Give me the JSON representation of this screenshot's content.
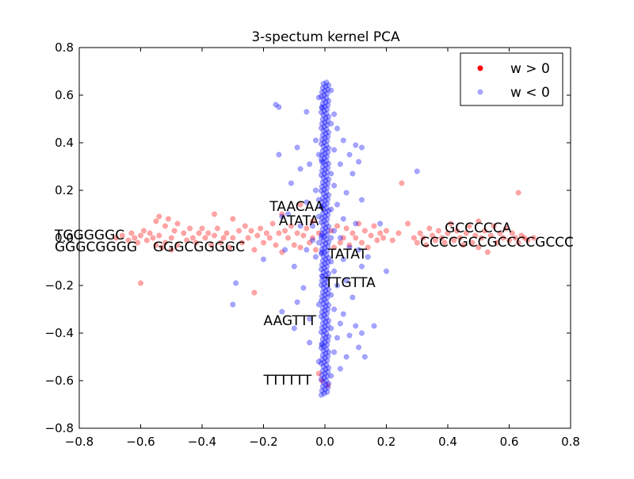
{
  "chart_data": {
    "type": "scatter",
    "title": "3-spectum kernel PCA",
    "xlabel": "",
    "ylabel": "",
    "xlim": [
      -0.8,
      0.8
    ],
    "ylim": [
      -0.8,
      0.8
    ],
    "x_ticks": [
      -0.8,
      -0.6,
      -0.4,
      -0.2,
      0.0,
      0.2,
      0.4,
      0.6,
      0.8
    ],
    "y_ticks": [
      -0.8,
      -0.6,
      -0.4,
      -0.2,
      0.0,
      0.2,
      0.4,
      0.6,
      0.8
    ],
    "x_tick_labels": [
      "−0.8",
      "−0.6",
      "−0.4",
      "−0.2",
      "0.0",
      "0.2",
      "0.4",
      "0.6",
      "0.8"
    ],
    "y_tick_labels": [
      "−0.8",
      "−0.6",
      "−0.4",
      "−0.2",
      "0.0",
      "0.2",
      "0.4",
      "0.6",
      "0.8"
    ],
    "grid": false,
    "legend": {
      "placement": "top-right"
    },
    "series": [
      {
        "name": "w > 0",
        "color": "#ff0000",
        "alpha": 0.35,
        "points": [
          [
            -0.68,
            0.0
          ],
          [
            -0.66,
            0.01
          ],
          [
            -0.64,
            -0.01
          ],
          [
            -0.63,
            0.02
          ],
          [
            -0.62,
            0.0
          ],
          [
            -0.61,
            -0.02
          ],
          [
            -0.6,
            0.01
          ],
          [
            -0.6,
            -0.19
          ],
          [
            -0.59,
            0.03
          ],
          [
            -0.58,
            -0.01
          ],
          [
            -0.57,
            0.02
          ],
          [
            -0.56,
            0.0
          ],
          [
            -0.55,
            0.07
          ],
          [
            -0.55,
            -0.03
          ],
          [
            -0.54,
            0.09
          ],
          [
            -0.54,
            0.01
          ],
          [
            -0.53,
            -0.04
          ],
          [
            -0.52,
            0.05
          ],
          [
            -0.52,
            -0.02
          ],
          [
            -0.51,
            0.08
          ],
          [
            -0.5,
            0.0
          ],
          [
            -0.5,
            -0.05
          ],
          [
            -0.49,
            0.03
          ],
          [
            -0.48,
            0.06
          ],
          [
            -0.48,
            -0.03
          ],
          [
            -0.46,
            0.02
          ],
          [
            -0.45,
            -0.01
          ],
          [
            -0.44,
            0.04
          ],
          [
            -0.43,
            0.0
          ],
          [
            -0.42,
            -0.02
          ],
          [
            -0.41,
            0.02
          ],
          [
            -0.4,
            0.04
          ],
          [
            -0.39,
            0.0
          ],
          [
            -0.38,
            0.02
          ],
          [
            -0.37,
            -0.03
          ],
          [
            -0.36,
            0.1
          ],
          [
            -0.36,
            0.01
          ],
          [
            -0.35,
            0.04
          ],
          [
            -0.34,
            -0.02
          ],
          [
            -0.33,
            0.0
          ],
          [
            -0.32,
            0.02
          ],
          [
            -0.31,
            -0.04
          ],
          [
            -0.3,
            0.08
          ],
          [
            -0.3,
            0.0
          ],
          [
            -0.28,
            0.03
          ],
          [
            -0.27,
            -0.02
          ],
          [
            -0.26,
            0.05
          ],
          [
            -0.25,
            0.0
          ],
          [
            -0.24,
            0.03
          ],
          [
            -0.23,
            -0.05
          ],
          [
            -0.23,
            -0.23
          ],
          [
            -0.22,
            0.01
          ],
          [
            -0.21,
            0.04
          ],
          [
            -0.2,
            -0.02
          ],
          [
            -0.19,
            0.02
          ],
          [
            -0.18,
            0.0
          ],
          [
            -0.17,
            0.06
          ],
          [
            -0.16,
            -0.03
          ],
          [
            -0.15,
            0.02
          ],
          [
            -0.14,
            0.1
          ],
          [
            -0.14,
            -0.06
          ],
          [
            -0.13,
            0.03
          ],
          [
            -0.12,
            0.0
          ],
          [
            -0.11,
            0.05
          ],
          [
            -0.1,
            -0.03
          ],
          [
            -0.09,
            0.02
          ],
          [
            -0.08,
            0.14
          ],
          [
            -0.08,
            -0.04
          ],
          [
            -0.07,
            0.01
          ],
          [
            -0.06,
            0.04
          ],
          [
            -0.05,
            -0.02
          ],
          [
            -0.04,
            0.07
          ],
          [
            -0.04,
            0.0
          ],
          [
            -0.03,
            -0.05
          ],
          [
            -0.02,
            0.02
          ],
          [
            -0.02,
            -0.57
          ],
          [
            -0.01,
            -0.6
          ],
          [
            0.01,
            -0.62
          ],
          [
            0.02,
            0.03
          ],
          [
            0.03,
            -0.04
          ],
          [
            0.04,
            0.05
          ],
          [
            0.05,
            -0.02
          ],
          [
            0.06,
            0.0
          ],
          [
            0.07,
            0.04
          ],
          [
            0.08,
            -0.03
          ],
          [
            0.09,
            0.02
          ],
          [
            0.1,
            0.0
          ],
          [
            0.11,
            0.06
          ],
          [
            0.12,
            -0.02
          ],
          [
            0.13,
            0.03
          ],
          [
            0.14,
            -0.04
          ],
          [
            0.15,
            0.01
          ],
          [
            0.16,
            0.05
          ],
          [
            0.17,
            -0.01
          ],
          [
            0.18,
            0.02
          ],
          [
            0.19,
            0.0
          ],
          [
            0.2,
            0.03
          ],
          [
            0.22,
            -0.01
          ],
          [
            0.24,
            0.02
          ],
          [
            0.25,
            0.23
          ],
          [
            0.27,
            0.06
          ],
          [
            0.29,
            0.0
          ],
          [
            0.3,
            -0.02
          ],
          [
            0.31,
            0.02
          ],
          [
            0.32,
            0.0
          ],
          [
            0.33,
            -0.03
          ],
          [
            0.34,
            0.04
          ],
          [
            0.35,
            0.01
          ],
          [
            0.36,
            -0.01
          ],
          [
            0.37,
            0.03
          ],
          [
            0.38,
            0.0
          ],
          [
            0.39,
            -0.02
          ],
          [
            0.4,
            0.02
          ],
          [
            0.41,
            0.06
          ],
          [
            0.42,
            -0.01
          ],
          [
            0.43,
            0.03
          ],
          [
            0.44,
            0.0
          ],
          [
            0.45,
            -0.03
          ],
          [
            0.46,
            0.02
          ],
          [
            0.47,
            0.05
          ],
          [
            0.48,
            -0.02
          ],
          [
            0.49,
            0.01
          ],
          [
            0.5,
            0.07
          ],
          [
            0.5,
            -0.04
          ],
          [
            0.51,
            0.0
          ],
          [
            0.52,
            0.03
          ],
          [
            0.53,
            -0.06
          ],
          [
            0.54,
            0.01
          ],
          [
            0.55,
            0.05
          ],
          [
            0.56,
            -0.02
          ],
          [
            0.57,
            0.02
          ],
          [
            0.58,
            0.0
          ],
          [
            0.59,
            0.04
          ],
          [
            0.6,
            -0.01
          ],
          [
            0.61,
            0.02
          ],
          [
            0.62,
            0.0
          ],
          [
            0.63,
            0.19
          ],
          [
            0.63,
            -0.02
          ],
          [
            0.64,
            0.01
          ],
          [
            0.65,
            0.0
          ],
          [
            0.66,
            -0.01
          ],
          [
            0.68,
            0.0
          ]
        ]
      },
      {
        "name": "w < 0",
        "color": "#0000ff",
        "alpha": 0.35,
        "points": [
          [
            -0.3,
            -0.28
          ],
          [
            -0.29,
            -0.19
          ],
          [
            -0.2,
            -0.09
          ],
          [
            -0.16,
            0.56
          ],
          [
            -0.15,
            0.55
          ],
          [
            -0.15,
            0.35
          ],
          [
            -0.14,
            0.09
          ],
          [
            -0.14,
            -0.31
          ],
          [
            -0.13,
            -0.05
          ],
          [
            -0.12,
            0.1
          ],
          [
            -0.11,
            0.23
          ],
          [
            -0.1,
            -0.12
          ],
          [
            -0.1,
            -0.38
          ],
          [
            -0.09,
            0.38
          ],
          [
            -0.09,
            -0.27
          ],
          [
            -0.08,
            0.29
          ],
          [
            -0.08,
            0.05
          ],
          [
            -0.07,
            -0.21
          ],
          [
            -0.06,
            0.53
          ],
          [
            -0.06,
            0.15
          ],
          [
            -0.06,
            -0.05
          ],
          [
            -0.05,
            0.31
          ],
          [
            -0.05,
            -0.34
          ],
          [
            -0.05,
            -0.44
          ],
          [
            -0.04,
            0.05
          ],
          [
            -0.04,
            -0.01
          ],
          [
            -0.03,
            0.41
          ],
          [
            -0.03,
            0.2
          ],
          [
            -0.03,
            -0.08
          ],
          [
            -0.02,
            0.59
          ],
          [
            -0.02,
            0.35
          ],
          [
            -0.02,
            0.16
          ],
          [
            -0.02,
            0.09
          ],
          [
            -0.02,
            -0.02
          ],
          [
            -0.02,
            -0.28
          ],
          [
            -0.02,
            -0.52
          ],
          [
            -0.01,
            0.55
          ],
          [
            -0.01,
            0.32
          ],
          [
            -0.01,
            0.13
          ],
          [
            -0.01,
            0.01
          ],
          [
            -0.01,
            -0.06
          ],
          [
            -0.01,
            -0.16
          ],
          [
            -0.01,
            -0.45
          ],
          [
            0.02,
            0.62
          ],
          [
            0.02,
            0.48
          ],
          [
            0.02,
            0.27
          ],
          [
            0.02,
            0.12
          ],
          [
            0.02,
            0.0
          ],
          [
            0.02,
            -0.1
          ],
          [
            0.02,
            -0.24
          ],
          [
            0.02,
            -0.38
          ],
          [
            0.02,
            -0.58
          ],
          [
            0.03,
            0.52
          ],
          [
            0.03,
            0.37
          ],
          [
            0.03,
            0.22
          ],
          [
            0.03,
            0.03
          ],
          [
            0.03,
            -0.14
          ],
          [
            0.03,
            -0.3
          ],
          [
            0.03,
            -0.48
          ],
          [
            0.04,
            0.46
          ],
          [
            0.04,
            0.14
          ],
          [
            0.04,
            -0.2
          ],
          [
            0.04,
            -0.42
          ],
          [
            0.05,
            0.31
          ],
          [
            0.05,
            0.0
          ],
          [
            0.05,
            -0.55
          ],
          [
            0.05,
            -0.36
          ],
          [
            0.06,
            0.41
          ],
          [
            0.06,
            0.08
          ],
          [
            0.06,
            -0.09
          ],
          [
            0.06,
            -0.32
          ],
          [
            0.07,
            0.19
          ],
          [
            0.07,
            -0.18
          ],
          [
            0.07,
            -0.5
          ],
          [
            0.08,
            0.35
          ],
          [
            0.08,
            -0.04
          ],
          [
            0.08,
            -0.41
          ],
          [
            0.09,
            0.27
          ],
          [
            0.09,
            -0.25
          ],
          [
            0.1,
            0.39
          ],
          [
            0.1,
            0.06
          ],
          [
            0.1,
            -0.37
          ],
          [
            0.11,
            0.32
          ],
          [
            0.11,
            -0.05
          ],
          [
            0.11,
            -0.46
          ],
          [
            0.12,
            0.38
          ],
          [
            0.12,
            0.16
          ],
          [
            0.12,
            -0.12
          ],
          [
            0.12,
            -0.4
          ],
          [
            0.13,
            -0.5
          ],
          [
            0.14,
            -0.08
          ],
          [
            0.16,
            -0.37
          ],
          [
            0.18,
            0.06
          ],
          [
            0.2,
            -0.14
          ],
          [
            0.3,
            0.28
          ]
        ]
      }
    ],
    "spine": {
      "color": "#0000ff",
      "x_range": [
        -0.012,
        0.012
      ],
      "y_range": [
        -0.66,
        0.66
      ]
    },
    "annotations": [
      {
        "text": "TGGGGGC",
        "x": -0.88,
        "y": 0.01
      },
      {
        "text": "GGGCGGGG",
        "x": -0.88,
        "y": -0.04
      },
      {
        "text": "GGGCGGGGC",
        "x": -0.56,
        "y": -0.04
      },
      {
        "text": "TAACAA",
        "x": -0.18,
        "y": 0.13
      },
      {
        "text": "ATATA",
        "x": -0.15,
        "y": 0.07
      },
      {
        "text": "TATAT",
        "x": 0.01,
        "y": -0.07
      },
      {
        "text": "TTGTTA",
        "x": 0.0,
        "y": -0.19
      },
      {
        "text": "AAGTTT",
        "x": -0.2,
        "y": -0.35
      },
      {
        "text": "TTTTTT",
        "x": -0.2,
        "y": -0.6
      },
      {
        "text": "GCCCCCA",
        "x": 0.39,
        "y": 0.04
      },
      {
        "text": "CCCCGCCGCCCCGCCC",
        "x": 0.31,
        "y": -0.02
      }
    ]
  }
}
